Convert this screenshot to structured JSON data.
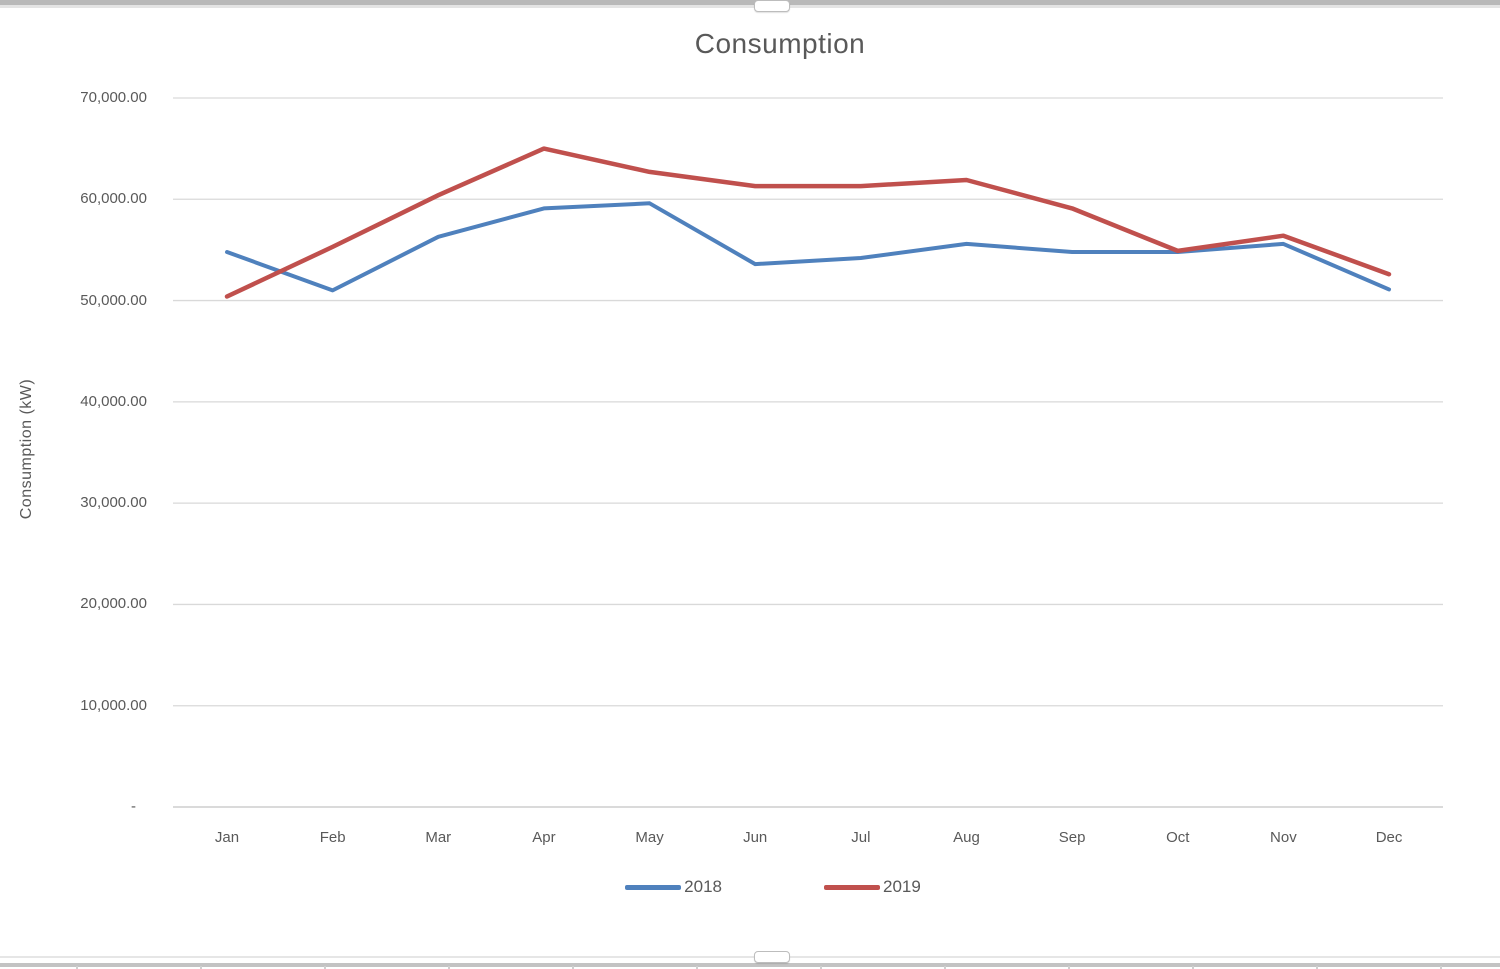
{
  "chart_data": {
    "type": "line",
    "title": "Consumption",
    "xlabel": "",
    "ylabel": "Consumption (kW)",
    "categories": [
      "Jan",
      "Feb",
      "Mar",
      "Apr",
      "May",
      "Jun",
      "Jul",
      "Aug",
      "Sep",
      "Oct",
      "Nov",
      "Dec"
    ],
    "series": [
      {
        "name": "2018",
        "color": "#4F81BD",
        "values": [
          54800,
          51000,
          56300,
          59100,
          59600,
          53600,
          54200,
          55600,
          54800,
          54800,
          55600,
          51100
        ]
      },
      {
        "name": "2019",
        "color": "#C0504D",
        "values": [
          50400,
          55300,
          60400,
          65000,
          62700,
          61300,
          61300,
          61900,
          59100,
          54900,
          56400,
          52600
        ]
      }
    ],
    "ylim": [
      0,
      70000
    ],
    "ytick_interval": 10000,
    "ytick_labels": [
      "-",
      "10,000.00",
      "20,000.00",
      "30,000.00",
      "40,000.00",
      "50,000.00",
      "60,000.00",
      "70,000.00"
    ],
    "grid": true,
    "legend_position": "bottom"
  },
  "colors": {
    "gridline": "#D9D9D9",
    "axis_text": "#595959",
    "title_text": "#595959",
    "chart_border": "#C3C3C3",
    "background": "#FFFFFF"
  }
}
